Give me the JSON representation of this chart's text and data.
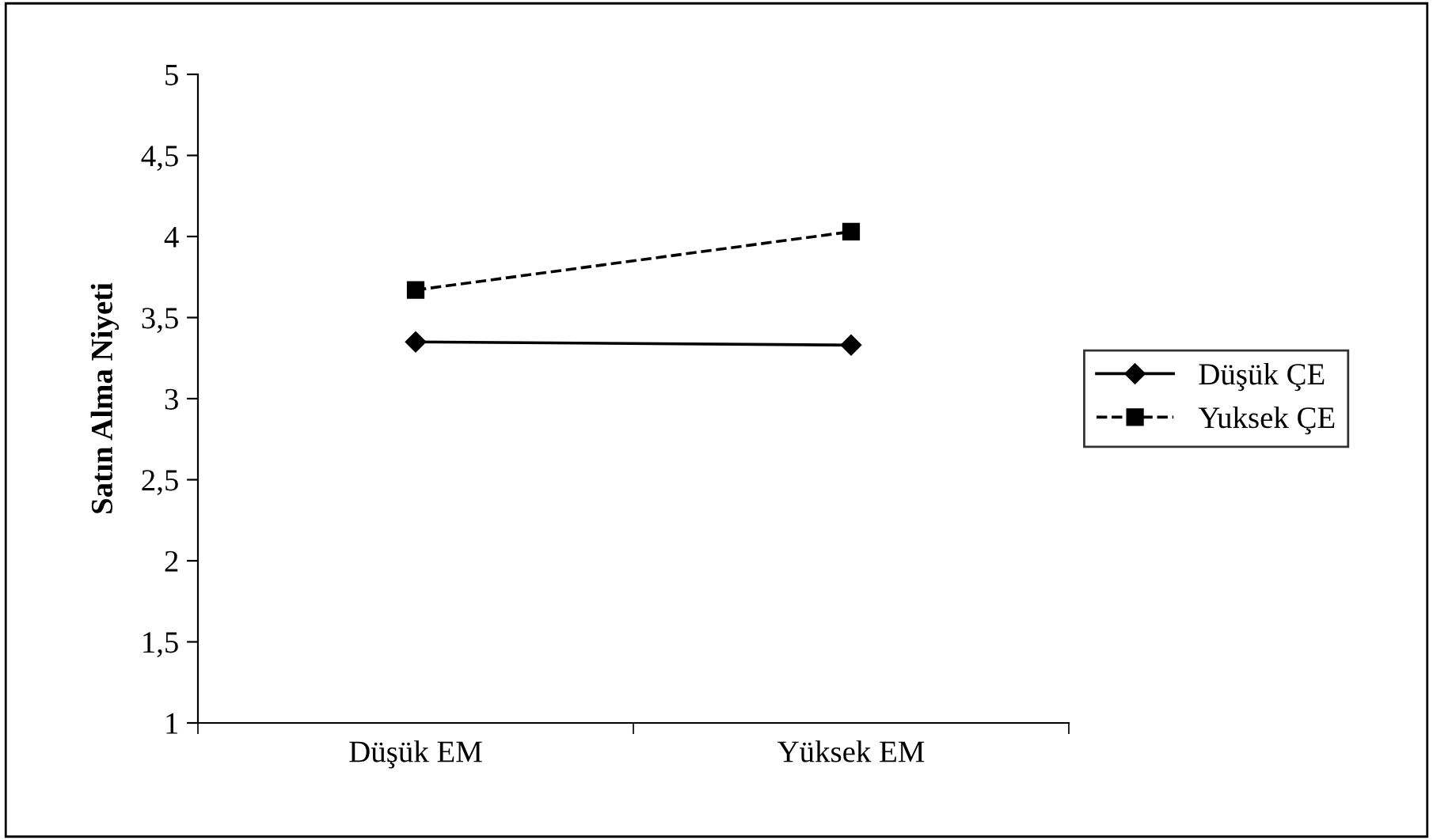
{
  "chart_data": {
    "type": "line",
    "ylabel": "Satın Alma Niyeti",
    "categories": [
      "Düşük EM",
      "Yüksek EM"
    ],
    "series": [
      {
        "name": "Düşük ÇE",
        "color": "#000000",
        "values": [
          3.35,
          3.33
        ],
        "marker": "diamond",
        "line_style": "solid"
      },
      {
        "name": "Yuksek ÇE",
        "color": "#000000",
        "values": [
          3.67,
          4.03
        ],
        "marker": "square",
        "line_style": "dashed"
      }
    ],
    "ylim": [
      1,
      5
    ],
    "yticks": [
      1,
      {
        "value": 1.5,
        "label": "1,5"
      },
      2,
      {
        "value": 2.5,
        "label": "2,5"
      },
      3,
      {
        "value": 3.5,
        "label": "3,5"
      },
      4,
      {
        "value": 4.5,
        "label": "4,5"
      },
      5
    ],
    "grid": false,
    "legend": "right"
  }
}
